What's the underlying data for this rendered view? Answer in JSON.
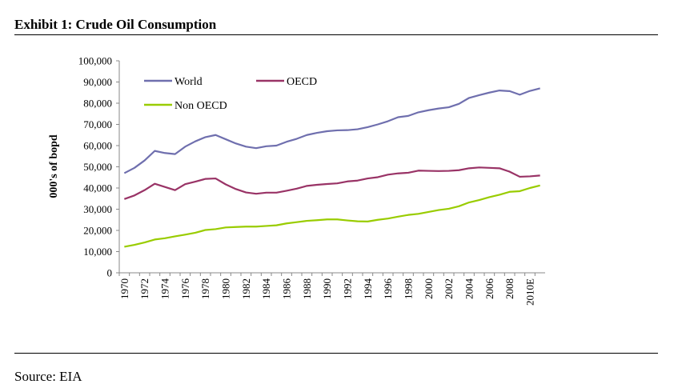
{
  "chart_data": {
    "type": "line",
    "title": "Exhibit 1: Crude Oil Consumption",
    "ylabel": "000's of bopd",
    "source": "Source: EIA",
    "categories": [
      "1970",
      null,
      "1972",
      null,
      "1974",
      null,
      "1976",
      null,
      "1978",
      null,
      "1980",
      null,
      "1982",
      null,
      "1984",
      null,
      "1986",
      null,
      "1988",
      null,
      "1990",
      null,
      "1992",
      null,
      "1994",
      null,
      "1996",
      null,
      "1998",
      null,
      "2000",
      null,
      "2002",
      null,
      "2004",
      null,
      "2006",
      null,
      "2008",
      null,
      "2010E",
      null
    ],
    "series": [
      {
        "name": "World",
        "color": "#6f6fae",
        "values": [
          47000,
          49500,
          53000,
          57500,
          56500,
          56000,
          59500,
          62000,
          64000,
          65000,
          63000,
          61000,
          59500,
          58800,
          59700,
          60000,
          61800,
          63200,
          65000,
          66000,
          66800,
          67200,
          67300,
          67700,
          68700,
          70000,
          71500,
          73400,
          74000,
          75700,
          76700,
          77500,
          78100,
          79700,
          82500,
          83800,
          85000,
          86000,
          85700,
          84000,
          85800,
          87000
        ]
      },
      {
        "name": "OECD",
        "color": "#993366",
        "values": [
          34800,
          36500,
          39000,
          42000,
          40500,
          39000,
          41800,
          43000,
          44300,
          44500,
          41700,
          39500,
          37900,
          37300,
          37800,
          37800,
          38700,
          39700,
          41000,
          41500,
          41900,
          42200,
          43100,
          43500,
          44500,
          45100,
          46300,
          46900,
          47200,
          48200,
          48100,
          48000,
          48100,
          48400,
          49300,
          49700,
          49500,
          49300,
          47700,
          45300,
          45500,
          45900
        ]
      },
      {
        "name": "Non OECD",
        "color": "#99cc00",
        "values": [
          12300,
          13200,
          14300,
          15700,
          16300,
          17200,
          18000,
          18900,
          20200,
          20600,
          21400,
          21600,
          21800,
          21800,
          22100,
          22400,
          23300,
          23900,
          24500,
          24800,
          25200,
          25200,
          24700,
          24300,
          24200,
          25000,
          25600,
          26500,
          27300,
          27800,
          28700,
          29600,
          30200,
          31400,
          33200,
          34300,
          35700,
          36800,
          38200,
          38500,
          40000,
          41200
        ]
      }
    ],
    "ylim": [
      0,
      100000
    ],
    "yticks": [
      0,
      {
        "value": 10000,
        "label": "10,000"
      },
      {
        "value": 20000,
        "label": "20,000"
      },
      {
        "value": 30000,
        "label": "30,000"
      },
      {
        "value": 40000,
        "label": "40,000"
      },
      {
        "value": 50000,
        "label": "50,000"
      },
      {
        "value": 60000,
        "label": "60,000"
      },
      {
        "value": 70000,
        "label": "70,000"
      },
      {
        "value": 80000,
        "label": "80,000"
      },
      {
        "value": 90000,
        "label": "90,000"
      },
      {
        "value": 100000,
        "label": "100,000"
      }
    ],
    "grid": false,
    "legend": "upper left"
  }
}
